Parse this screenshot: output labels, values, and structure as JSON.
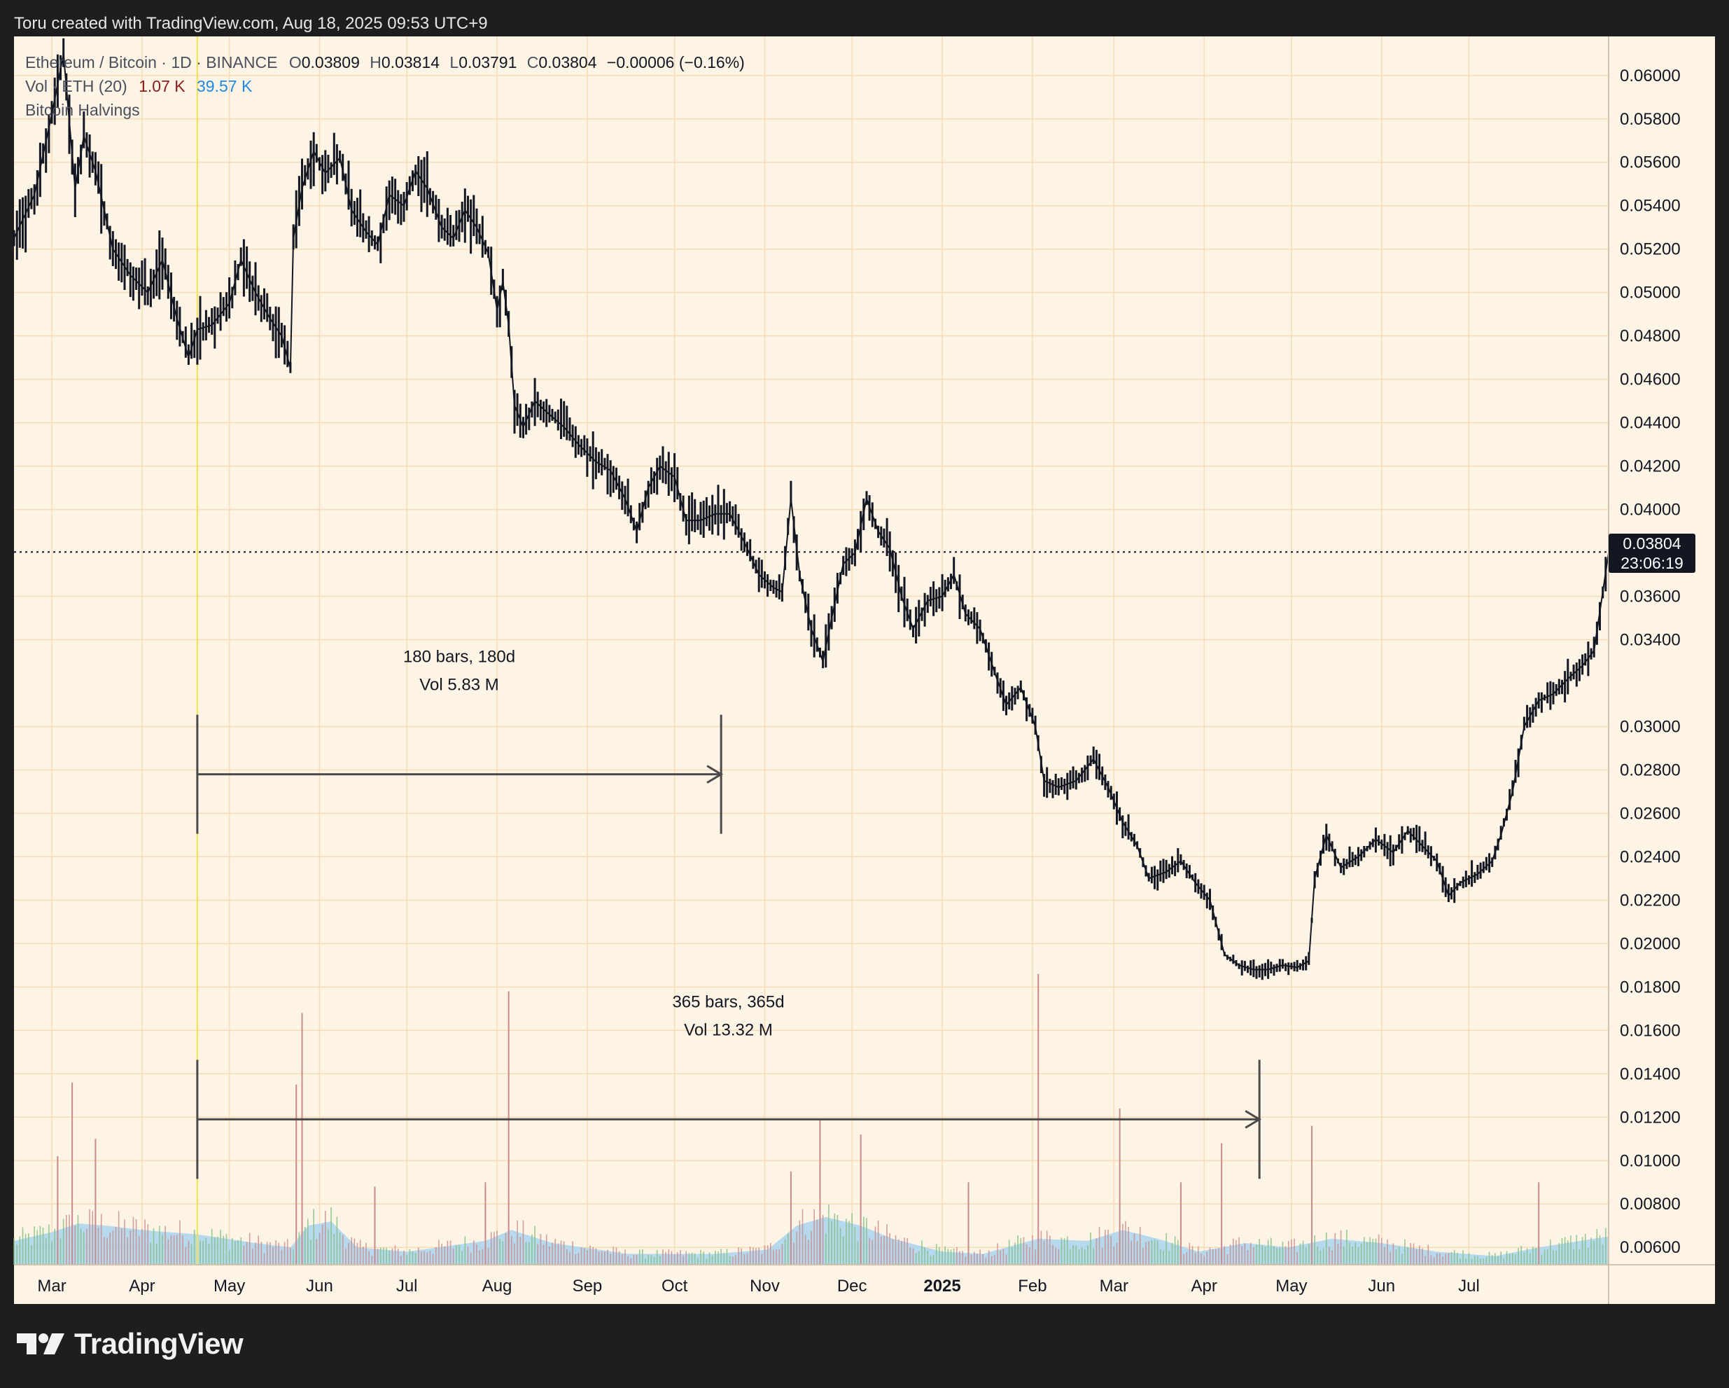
{
  "caption": "Toru created with TradingView.com, Aug 18, 2025 09:53 UTC+9",
  "brand": "TradingView",
  "legend": {
    "symbol": "Ethereum / Bitcoin · 1D · BINANCE",
    "ohlc": [
      {
        "k": "O",
        "v": "0.03809"
      },
      {
        "k": "H",
        "v": "0.03814"
      },
      {
        "k": "L",
        "v": "0.03791"
      },
      {
        "k": "C",
        "v": "0.03804"
      }
    ],
    "change": "−0.00006 (−0.16%)",
    "vol_label": "Vol · ETH (20)",
    "vol_value": "1.07 K",
    "vol_ma": "39.57 K",
    "indicator": "Bitcoin Halvings"
  },
  "last_price": {
    "price": "0.03804",
    "countdown": "23:06:19"
  },
  "colors": {
    "bg": "#fdf4e6",
    "grid": "#f6dcb6",
    "candle": "#131722",
    "vol_ma": "#a9d3ef",
    "up_vol": "#7fbf7f",
    "down_vol": "#c98a8a",
    "halving": "#f3e24a",
    "tag": "#131722"
  },
  "chart_data": {
    "type": "line",
    "title": "Ethereum / Bitcoin · 1D · BINANCE",
    "y_ticks": [
      "0.06000",
      "0.05800",
      "0.05600",
      "0.05400",
      "0.05200",
      "0.05000",
      "0.04800",
      "0.04600",
      "0.04400",
      "0.04200",
      "0.04000",
      "0.03600",
      "0.03400",
      "0.03000",
      "0.02800",
      "0.02600",
      "0.02400",
      "0.02200",
      "0.02000",
      "0.01800",
      "0.01600",
      "0.01400",
      "0.01200",
      "0.01000",
      "0.00800",
      "0.00600"
    ],
    "ylim": [
      0.0052,
      0.0618
    ],
    "x_ticks": [
      "Mar",
      "Apr",
      "May",
      "Jun",
      "Jul",
      "Aug",
      "Sep",
      "Oct",
      "Nov",
      "Dec",
      "2025",
      "Feb",
      "Mar",
      "Apr",
      "May",
      "Jun",
      "Jul"
    ],
    "x_range": [
      "2024-02-17",
      "2025-08-18"
    ],
    "price": {
      "name": "ETH/BTC",
      "points": [
        [
          "2024-02-17",
          0.0525
        ],
        [
          "2024-02-24",
          0.0545
        ],
        [
          "2024-03-01",
          0.0582
        ],
        [
          "2024-03-05",
          0.061
        ],
        [
          "2024-03-09",
          0.0548
        ],
        [
          "2024-03-12",
          0.0572
        ],
        [
          "2024-03-16",
          0.0556
        ],
        [
          "2024-03-22",
          0.052
        ],
        [
          "2024-03-28",
          0.0508
        ],
        [
          "2024-04-03",
          0.05
        ],
        [
          "2024-04-08",
          0.0515
        ],
        [
          "2024-04-13",
          0.0488
        ],
        [
          "2024-04-17",
          0.047
        ],
        [
          "2024-04-20",
          0.0483
        ],
        [
          "2024-04-25",
          0.0485
        ],
        [
          "2024-05-01",
          0.0495
        ],
        [
          "2024-05-05",
          0.0515
        ],
        [
          "2024-05-10",
          0.05
        ],
        [
          "2024-05-15",
          0.0488
        ],
        [
          "2024-05-19",
          0.048
        ],
        [
          "2024-05-22",
          0.0465
        ],
        [
          "2024-05-23",
          0.0525
        ],
        [
          "2024-05-26",
          0.0548
        ],
        [
          "2024-05-30",
          0.0565
        ],
        [
          "2024-06-03",
          0.0555
        ],
        [
          "2024-06-08",
          0.0562
        ],
        [
          "2024-06-12",
          0.0538
        ],
        [
          "2024-06-17",
          0.0528
        ],
        [
          "2024-06-21",
          0.0522
        ],
        [
          "2024-06-25",
          0.0545
        ],
        [
          "2024-06-30",
          0.054
        ],
        [
          "2024-07-04",
          0.0556
        ],
        [
          "2024-07-08",
          0.0548
        ],
        [
          "2024-07-13",
          0.053
        ],
        [
          "2024-07-17",
          0.0525
        ],
        [
          "2024-07-21",
          0.0538
        ],
        [
          "2024-07-25",
          0.053
        ],
        [
          "2024-07-29",
          0.0518
        ],
        [
          "2024-08-01",
          0.0492
        ],
        [
          "2024-08-03",
          0.0505
        ],
        [
          "2024-08-05",
          0.0485
        ],
        [
          "2024-08-07",
          0.0448
        ],
        [
          "2024-08-10",
          0.0438
        ],
        [
          "2024-08-14",
          0.045
        ],
        [
          "2024-08-18",
          0.0445
        ],
        [
          "2024-08-24",
          0.0438
        ],
        [
          "2024-08-29",
          0.043
        ],
        [
          "2024-09-04",
          0.0422
        ],
        [
          "2024-09-09",
          0.0418
        ],
        [
          "2024-09-14",
          0.0405
        ],
        [
          "2024-09-18",
          0.039
        ],
        [
          "2024-09-22",
          0.041
        ],
        [
          "2024-09-26",
          0.042
        ],
        [
          "2024-10-01",
          0.0415
        ],
        [
          "2024-10-05",
          0.0395
        ],
        [
          "2024-10-10",
          0.0395
        ],
        [
          "2024-10-15",
          0.0398
        ],
        [
          "2024-10-20",
          0.0398
        ],
        [
          "2024-10-25",
          0.0385
        ],
        [
          "2024-10-30",
          0.037
        ],
        [
          "2024-11-04",
          0.0364
        ],
        [
          "2024-11-07",
          0.0362
        ],
        [
          "2024-11-10",
          0.0405
        ],
        [
          "2024-11-13",
          0.037
        ],
        [
          "2024-11-17",
          0.0345
        ],
        [
          "2024-11-21",
          0.033
        ],
        [
          "2024-11-24",
          0.035
        ],
        [
          "2024-11-28",
          0.0375
        ],
        [
          "2024-12-02",
          0.038
        ],
        [
          "2024-12-06",
          0.0405
        ],
        [
          "2024-12-10",
          0.039
        ],
        [
          "2024-12-14",
          0.0382
        ],
        [
          "2024-12-18",
          0.036
        ],
        [
          "2024-12-22",
          0.0345
        ],
        [
          "2024-12-27",
          0.0358
        ],
        [
          "2025-01-01",
          0.036
        ],
        [
          "2025-01-05",
          0.037
        ],
        [
          "2025-01-09",
          0.0352
        ],
        [
          "2025-01-14",
          0.0345
        ],
        [
          "2025-01-19",
          0.0325
        ],
        [
          "2025-01-23",
          0.031
        ],
        [
          "2025-01-28",
          0.0318
        ],
        [
          "2025-02-02",
          0.03
        ],
        [
          "2025-02-05",
          0.0275
        ],
        [
          "2025-02-10",
          0.0272
        ],
        [
          "2025-02-16",
          0.0275
        ],
        [
          "2025-02-22",
          0.0285
        ],
        [
          "2025-02-27",
          0.0272
        ],
        [
          "2025-03-04",
          0.0256
        ],
        [
          "2025-03-09",
          0.0245
        ],
        [
          "2025-03-13",
          0.023
        ],
        [
          "2025-03-19",
          0.0233
        ],
        [
          "2025-03-24",
          0.0238
        ],
        [
          "2025-03-29",
          0.0228
        ],
        [
          "2025-04-03",
          0.022
        ],
        [
          "2025-04-08",
          0.0195
        ],
        [
          "2025-04-13",
          0.019
        ],
        [
          "2025-04-18",
          0.0188
        ],
        [
          "2025-04-23",
          0.0188
        ],
        [
          "2025-04-28",
          0.019
        ],
        [
          "2025-05-03",
          0.0189
        ],
        [
          "2025-05-07",
          0.0192
        ],
        [
          "2025-05-09",
          0.023
        ],
        [
          "2025-05-13",
          0.025
        ],
        [
          "2025-05-18",
          0.0235
        ],
        [
          "2025-05-24",
          0.024
        ],
        [
          "2025-05-30",
          0.0248
        ],
        [
          "2025-06-05",
          0.0242
        ],
        [
          "2025-06-10",
          0.0252
        ],
        [
          "2025-06-15",
          0.0245
        ],
        [
          "2025-06-20",
          0.0238
        ],
        [
          "2025-06-24",
          0.0222
        ],
        [
          "2025-06-28",
          0.0228
        ],
        [
          "2025-07-04",
          0.0232
        ],
        [
          "2025-07-09",
          0.0238
        ],
        [
          "2025-07-12",
          0.025
        ],
        [
          "2025-07-16",
          0.027
        ],
        [
          "2025-07-20",
          0.03
        ],
        [
          "2025-07-25",
          0.0312
        ],
        [
          "2025-07-30",
          0.0315
        ],
        [
          "2025-08-04",
          0.0322
        ],
        [
          "2025-08-09",
          0.0328
        ],
        [
          "2025-08-13",
          0.0335
        ],
        [
          "2025-08-18",
          0.038
        ]
      ]
    },
    "volume_ma": [
      [
        "2024-02-17",
        0.0063
      ],
      [
        "2024-03-01",
        0.0067
      ],
      [
        "2024-03-10",
        0.0071
      ],
      [
        "2024-03-20",
        0.007
      ],
      [
        "2024-04-01",
        0.0068
      ],
      [
        "2024-04-20",
        0.0066
      ],
      [
        "2024-05-10",
        0.0062
      ],
      [
        "2024-05-22",
        0.006
      ],
      [
        "2024-05-28",
        0.007
      ],
      [
        "2024-06-05",
        0.0072
      ],
      [
        "2024-06-14",
        0.006
      ],
      [
        "2024-07-01",
        0.0058
      ],
      [
        "2024-07-28",
        0.0063
      ],
      [
        "2024-08-06",
        0.0068
      ],
      [
        "2024-08-20",
        0.0062
      ],
      [
        "2024-09-15",
        0.0057
      ],
      [
        "2024-10-15",
        0.0057
      ],
      [
        "2024-11-02",
        0.0059
      ],
      [
        "2024-11-12",
        0.007
      ],
      [
        "2024-11-22",
        0.0074
      ],
      [
        "2024-12-04",
        0.007
      ],
      [
        "2024-12-15",
        0.0064
      ],
      [
        "2025-01-01",
        0.0058
      ],
      [
        "2025-01-15",
        0.0057
      ],
      [
        "2025-02-03",
        0.0064
      ],
      [
        "2025-02-20",
        0.0063
      ],
      [
        "2025-03-04",
        0.0068
      ],
      [
        "2025-03-16",
        0.0064
      ],
      [
        "2025-03-30",
        0.0058
      ],
      [
        "2025-04-15",
        0.0062
      ],
      [
        "2025-04-30",
        0.006
      ],
      [
        "2025-05-15",
        0.0064
      ],
      [
        "2025-06-01",
        0.0062
      ],
      [
        "2025-06-20",
        0.0058
      ],
      [
        "2025-07-10",
        0.0056
      ],
      [
        "2025-07-25",
        0.006
      ],
      [
        "2025-08-18",
        0.0065
      ]
    ],
    "volume_spikes": [
      [
        "2024-03-03",
        0.0102
      ],
      [
        "2024-03-08",
        0.0136
      ],
      [
        "2024-03-16",
        0.011
      ],
      [
        "2024-05-24",
        0.0135
      ],
      [
        "2024-05-26",
        0.0168
      ],
      [
        "2024-06-20",
        0.0088
      ],
      [
        "2024-07-28",
        0.009
      ],
      [
        "2024-08-05",
        0.0178
      ],
      [
        "2024-11-10",
        0.0095
      ],
      [
        "2024-11-20",
        0.0119
      ],
      [
        "2024-12-04",
        0.0112
      ],
      [
        "2025-01-10",
        0.009
      ],
      [
        "2025-02-03",
        0.0186
      ],
      [
        "2025-03-03",
        0.0124
      ],
      [
        "2025-03-24",
        0.009
      ],
      [
        "2025-04-07",
        0.0108
      ],
      [
        "2025-05-08",
        0.0116
      ],
      [
        "2025-07-25",
        0.009
      ]
    ],
    "measurements": [
      {
        "label": "180 bars, 180d",
        "vol": "Vol 5.83 M",
        "from": "2024-04-20",
        "to": "2024-10-17",
        "y": 0.0278
      },
      {
        "label": "365 bars, 365d",
        "vol": "Vol 13.32 M",
        "from": "2024-04-20",
        "to": "2025-04-20",
        "y": 0.0119
      }
    ],
    "halving_date": "2024-04-20",
    "grid": true,
    "legend_position": "top-left"
  }
}
